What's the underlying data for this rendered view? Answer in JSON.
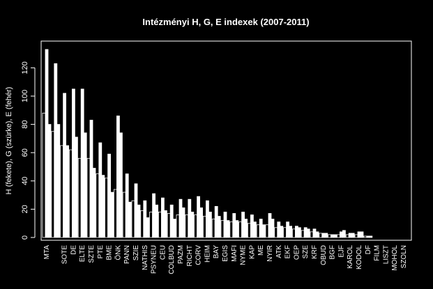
{
  "chart_data": {
    "type": "bar",
    "title": "Intézményi H, G, E indexek (2007-2011)",
    "xlabel": "",
    "ylabel": "H (fekete), G (szürke), E (fehér)",
    "ylim": [
      0,
      135
    ],
    "yticks": [
      0,
      20,
      40,
      60,
      80,
      100,
      120
    ],
    "grid": false,
    "legend": "none",
    "colors": {
      "background": "#000000",
      "foreground": "#ffffff",
      "H": "#000000",
      "G": "#ffffff",
      "E": "#ffffff"
    },
    "categories": [
      "MTA",
      "",
      "SOTE",
      "DE",
      "ELTE",
      "SZTE",
      "PTE",
      "BME",
      "ÖNK",
      "PANN",
      "SZIE",
      "NATHIS",
      "PSYNEU",
      "CEU",
      "COLBUD",
      "PAZM",
      "RICHT",
      "CORV",
      "HEIM",
      "BAY",
      "EGIS",
      "MAFI",
      "NYME",
      "KAP",
      "ME",
      "NYIR",
      "ATK",
      "EKF",
      "OEP",
      "SZE",
      "KRF",
      "OBUD",
      "BGF",
      "EJF",
      "KAROL",
      "KODOL",
      "DF",
      "FILM",
      "LISZT",
      "MOHOL",
      "SZOLN"
    ],
    "series": [
      {
        "name": "H",
        "values": [
          88,
          75,
          65,
          62,
          56,
          56,
          45,
          42,
          34,
          32,
          26,
          19,
          18,
          18,
          17,
          16,
          16,
          16,
          15,
          13,
          12,
          11,
          11,
          10,
          9,
          9,
          7,
          7,
          6,
          5,
          4,
          3,
          2,
          2,
          2,
          2,
          1,
          0,
          0,
          0,
          0
        ]
      },
      {
        "name": "G",
        "values": [
          133,
          123,
          102,
          105,
          105,
          83,
          67,
          59,
          86,
          45,
          38,
          26,
          31,
          28,
          23,
          27,
          27,
          29,
          26,
          22,
          18,
          17,
          18,
          16,
          13,
          17,
          11,
          11,
          8,
          7,
          6,
          3,
          2,
          4,
          3,
          4,
          1,
          0,
          0,
          0,
          0
        ]
      },
      {
        "name": "E",
        "values": [
          80,
          80,
          65,
          71,
          74,
          49,
          44,
          32,
          74,
          25,
          23,
          14,
          23,
          19,
          13,
          21,
          18,
          21,
          18,
          15,
          12,
          12,
          13,
          11,
          9,
          13,
          8,
          8,
          7,
          6,
          4,
          3,
          2,
          5,
          3,
          4,
          1,
          0,
          0,
          0,
          0
        ]
      }
    ]
  }
}
